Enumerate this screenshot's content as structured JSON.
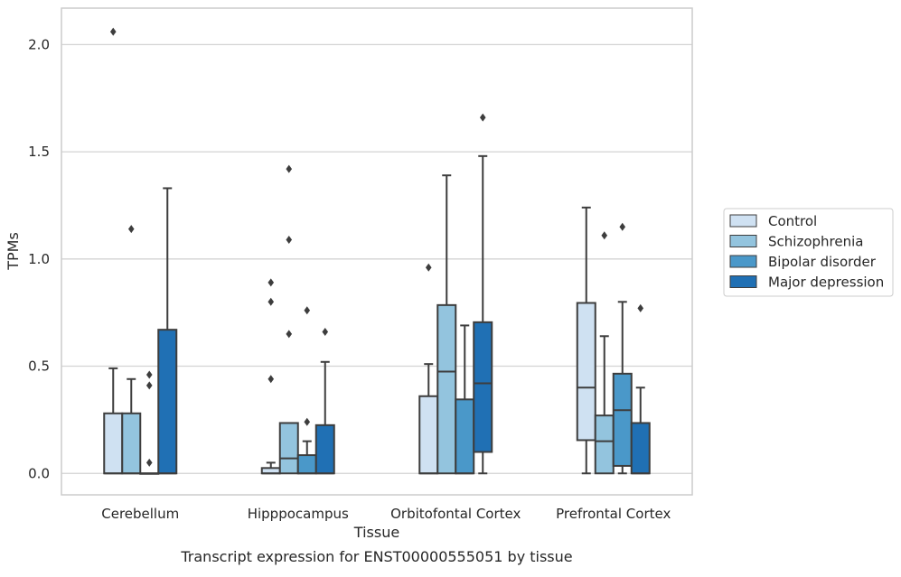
{
  "chart_data": {
    "type": "boxplot",
    "title": "",
    "caption": "Transcript expression for ENST00000555051 by tissue",
    "xlabel": "Tissue",
    "ylabel": "TPMs",
    "ylim": [
      -0.1,
      2.17
    ],
    "yticks": [
      0.0,
      0.5,
      1.0,
      1.5,
      2.0
    ],
    "ytick_labels": [
      "0.0",
      "0.5",
      "1.0",
      "1.5",
      "2.0"
    ],
    "grid": "horizontal",
    "legend_position": "right",
    "categories": [
      "Cerebellum",
      "Hipppocampus",
      "Orbitofontal Cortex",
      "Prefrontal Cortex"
    ],
    "series": [
      {
        "name": "Control",
        "color": "#cfe1f2",
        "boxes": [
          {
            "q1": 0.0,
            "median": 0.0,
            "q3": 0.28,
            "whisker_low": 0.0,
            "whisker_high": 0.49,
            "outliers": [
              2.06
            ]
          },
          {
            "q1": 0.0,
            "median": 0.0,
            "q3": 0.025,
            "whisker_low": 0.0,
            "whisker_high": 0.05,
            "outliers": [
              0.44,
              0.8,
              0.89
            ]
          },
          {
            "q1": 0.0,
            "median": 0.0,
            "q3": 0.36,
            "whisker_low": 0.0,
            "whisker_high": 0.51,
            "outliers": [
              0.96
            ]
          },
          {
            "q1": 0.155,
            "median": 0.4,
            "q3": 0.795,
            "whisker_low": 0.0,
            "whisker_high": 1.24,
            "outliers": []
          }
        ]
      },
      {
        "name": "Schizophrenia",
        "color": "#93c4de",
        "boxes": [
          {
            "q1": 0.0,
            "median": 0.0,
            "q3": 0.28,
            "whisker_low": 0.0,
            "whisker_high": 0.44,
            "outliers": [
              1.14
            ]
          },
          {
            "q1": 0.0,
            "median": 0.07,
            "q3": 0.235,
            "whisker_low": 0.0,
            "whisker_high": 0.235,
            "outliers": [
              0.65,
              1.09,
              1.42
            ]
          },
          {
            "q1": 0.0,
            "median": 0.475,
            "q3": 0.785,
            "whisker_low": 0.0,
            "whisker_high": 1.39,
            "outliers": []
          },
          {
            "q1": 0.0,
            "median": 0.15,
            "q3": 0.27,
            "whisker_low": 0.0,
            "whisker_high": 0.64,
            "outliers": [
              1.11
            ]
          }
        ]
      },
      {
        "name": "Bipolar disorder",
        "color": "#4a98c9",
        "boxes": [
          {
            "q1": 0.0,
            "median": 0.0,
            "q3": 0.0,
            "whisker_low": 0.0,
            "whisker_high": 0.0,
            "outliers": [
              0.05,
              0.41,
              0.46
            ]
          },
          {
            "q1": 0.0,
            "median": 0.0,
            "q3": 0.085,
            "whisker_low": 0.0,
            "whisker_high": 0.15,
            "outliers": [
              0.24,
              0.76
            ]
          },
          {
            "q1": 0.0,
            "median": 0.0,
            "q3": 0.345,
            "whisker_low": 0.0,
            "whisker_high": 0.69,
            "outliers": []
          },
          {
            "q1": 0.035,
            "median": 0.295,
            "q3": 0.465,
            "whisker_low": 0.0,
            "whisker_high": 0.8,
            "outliers": [
              1.15
            ]
          }
        ]
      },
      {
        "name": "Major depression",
        "color": "#2070b4",
        "boxes": [
          {
            "q1": 0.0,
            "median": 0.0,
            "q3": 0.67,
            "whisker_low": 0.0,
            "whisker_high": 1.33,
            "outliers": []
          },
          {
            "q1": 0.0,
            "median": 0.0,
            "q3": 0.225,
            "whisker_low": 0.0,
            "whisker_high": 0.52,
            "outliers": [
              0.66
            ]
          },
          {
            "q1": 0.1,
            "median": 0.42,
            "q3": 0.705,
            "whisker_low": 0.0,
            "whisker_high": 1.48,
            "outliers": [
              1.66
            ]
          },
          {
            "q1": 0.0,
            "median": 0.0,
            "q3": 0.235,
            "whisker_low": 0.0,
            "whisker_high": 0.4,
            "outliers": [
              0.77
            ]
          }
        ]
      }
    ]
  }
}
